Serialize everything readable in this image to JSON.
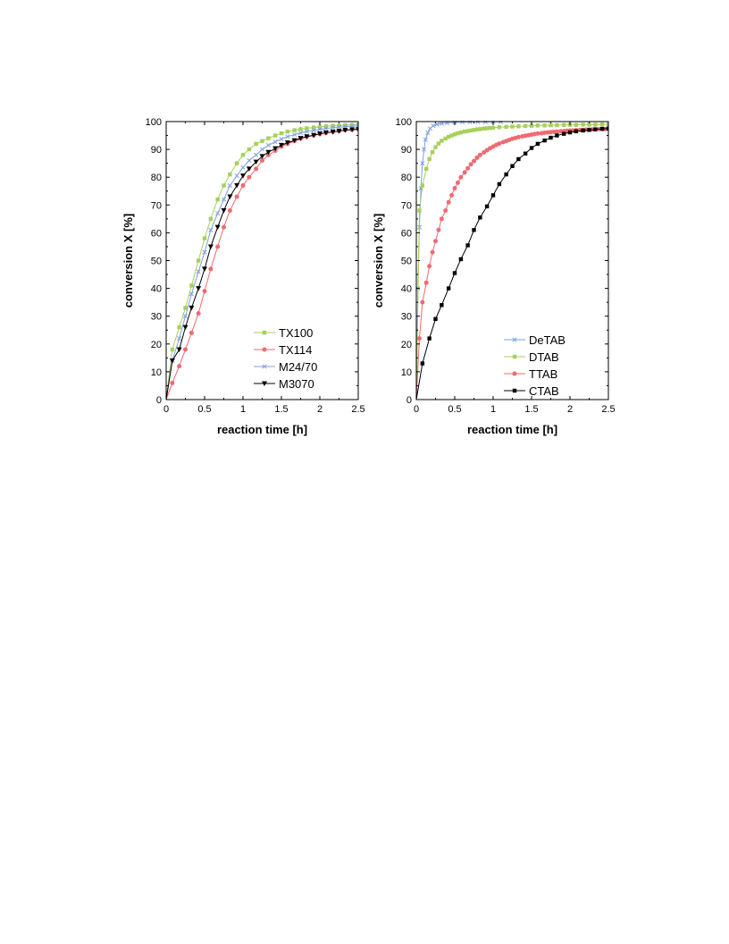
{
  "chart_data": [
    {
      "type": "line",
      "xlabel": "reaction time [h]",
      "ylabel": "conversion X [%]",
      "xlim": [
        0,
        2.5
      ],
      "ylim": [
        0,
        100
      ],
      "xticks": [
        "0",
        "0.5",
        "1",
        "1.5",
        "2",
        "2.5"
      ],
      "yticks": [
        "0",
        "10",
        "20",
        "30",
        "40",
        "50",
        "60",
        "70",
        "80",
        "90",
        "100"
      ],
      "grid": false,
      "legend_position": "bottom-right",
      "series": [
        {
          "name": "TX100",
          "color": "#a6d05a",
          "marker": "square",
          "x": [
            0,
            0.08,
            0.17,
            0.25,
            0.33,
            0.42,
            0.5,
            0.58,
            0.67,
            0.75,
            0.83,
            0.92,
            1.0,
            1.08,
            1.17,
            1.25,
            1.33,
            1.42,
            1.5,
            1.58,
            1.67,
            1.75,
            1.83,
            1.92,
            2.0,
            2.08,
            2.17,
            2.25,
            2.33,
            2.42,
            2.5
          ],
          "y": [
            0,
            18,
            26,
            33,
            41,
            50,
            58,
            65,
            72,
            77,
            81,
            85,
            88,
            90,
            92,
            93,
            94,
            95,
            95.8,
            96.4,
            96.9,
            97.3,
            97.6,
            97.9,
            98.1,
            98.3,
            98.5,
            98.6,
            98.7,
            98.8,
            98.9
          ]
        },
        {
          "name": "TX114",
          "color": "#ee6b72",
          "marker": "circle",
          "x": [
            0,
            0.08,
            0.17,
            0.25,
            0.33,
            0.42,
            0.5,
            0.58,
            0.67,
            0.75,
            0.83,
            0.92,
            1.0,
            1.08,
            1.17,
            1.25,
            1.33,
            1.42,
            1.5,
            1.58,
            1.67,
            1.75,
            1.83,
            1.92,
            2.0,
            2.08,
            2.17,
            2.25,
            2.33,
            2.42,
            2.5
          ],
          "y": [
            0,
            6,
            12,
            18,
            24,
            31,
            39,
            47,
            55,
            62,
            68,
            73,
            77,
            80,
            83,
            86,
            88,
            89.5,
            91,
            92,
            93,
            93.8,
            94.5,
            95,
            95.5,
            95.9,
            96.3,
            96.6,
            96.9,
            97.1,
            97.3
          ]
        },
        {
          "name": "M24/70",
          "color": "#7f9fe0",
          "marker": "cross",
          "x": [
            0,
            0.08,
            0.17,
            0.25,
            0.33,
            0.42,
            0.5,
            0.58,
            0.67,
            0.75,
            0.83,
            0.92,
            1.0,
            1.08,
            1.17,
            1.25,
            1.33,
            1.42,
            1.5,
            1.58,
            1.67,
            1.75,
            1.83,
            1.92,
            2.0,
            2.08,
            2.17,
            2.25,
            2.33,
            2.42,
            2.5
          ],
          "y": [
            0,
            14,
            22,
            30,
            38,
            46,
            53,
            61,
            67,
            72,
            77,
            80.5,
            83.5,
            86,
            88,
            90,
            91.5,
            92.7,
            93.7,
            94.6,
            95.3,
            95.9,
            96.4,
            96.8,
            97.2,
            97.5,
            97.8,
            98,
            98.2,
            98.3,
            98.4
          ]
        },
        {
          "name": "M3070",
          "color": "#000000",
          "marker": "triangle-down",
          "x": [
            0,
            0.08,
            0.17,
            0.25,
            0.33,
            0.42,
            0.5,
            0.58,
            0.67,
            0.75,
            0.83,
            0.92,
            1.0,
            1.08,
            1.17,
            1.25,
            1.33,
            1.42,
            1.5,
            1.58,
            1.67,
            1.75,
            1.83,
            1.92,
            2.0,
            2.08,
            2.17,
            2.25,
            2.33,
            2.42,
            2.5
          ],
          "y": [
            0,
            14,
            18,
            26,
            33,
            40,
            47,
            55,
            62,
            68,
            73,
            77,
            80.5,
            83,
            85.5,
            87.5,
            89,
            90.3,
            91.5,
            92.4,
            93.2,
            94,
            94.6,
            95.1,
            95.6,
            96,
            96.3,
            96.6,
            96.9,
            97.1,
            97.2
          ]
        }
      ]
    },
    {
      "type": "line",
      "xlabel": "reaction time [h]",
      "ylabel": "conversion X [%]",
      "xlim": [
        0,
        2.5
      ],
      "ylim": [
        0,
        100
      ],
      "xticks": [
        "0",
        "0.5",
        "1",
        "1.5",
        "2",
        "2.5"
      ],
      "yticks": [
        "0",
        "10",
        "20",
        "30",
        "40",
        "50",
        "60",
        "70",
        "80",
        "90",
        "100"
      ],
      "grid": false,
      "legend_position": "bottom-right",
      "series": [
        {
          "name": "DeTAB",
          "color": "#7f9fe0",
          "marker": "cross",
          "x": [
            0,
            0.02,
            0.04,
            0.06,
            0.08,
            0.1,
            0.12,
            0.15,
            0.18,
            0.22,
            0.27,
            0.33,
            0.4,
            0.5,
            0.6,
            0.7,
            0.8,
            0.9,
            1.0,
            1.1
          ],
          "y": [
            0,
            40,
            62,
            76,
            85,
            90,
            93.5,
            96,
            97.5,
            98.5,
            99,
            99.3,
            99.5,
            99.7,
            99.8,
            99.8,
            99.9,
            99.9,
            99.9,
            99.9
          ]
        },
        {
          "name": "DTAB",
          "color": "#a6d05a",
          "marker": "square",
          "x": [
            0,
            0.04,
            0.08,
            0.13,
            0.17,
            0.21,
            0.25,
            0.29,
            0.33,
            0.38,
            0.42,
            0.46,
            0.5,
            0.54,
            0.58,
            0.63,
            0.67,
            0.71,
            0.75,
            0.79,
            0.83,
            0.88,
            0.92,
            0.96,
            1.0,
            1.08,
            1.17,
            1.25,
            1.33,
            1.42,
            1.5,
            1.58,
            1.67,
            1.75,
            1.83,
            1.92,
            2.0,
            2.08,
            2.17,
            2.25,
            2.33,
            2.42,
            2.5
          ],
          "y": [
            0,
            68,
            77,
            83,
            86.5,
            89,
            90.8,
            92.1,
            93.1,
            93.9,
            94.5,
            95,
            95.4,
            95.8,
            96.1,
            96.4,
            96.6,
            96.8,
            97,
            97.2,
            97.3,
            97.5,
            97.6,
            97.7,
            97.8,
            98,
            98.1,
            98.2,
            98.3,
            98.4,
            98.5,
            98.6,
            98.6,
            98.7,
            98.7,
            98.8,
            98.8,
            98.8,
            98.9,
            98.9,
            98.9,
            99,
            99
          ]
        },
        {
          "name": "TTAB",
          "color": "#ee6b72",
          "marker": "circle",
          "x": [
            0,
            0.04,
            0.08,
            0.13,
            0.17,
            0.21,
            0.25,
            0.29,
            0.33,
            0.38,
            0.42,
            0.46,
            0.5,
            0.54,
            0.58,
            0.63,
            0.67,
            0.71,
            0.75,
            0.79,
            0.83,
            0.88,
            0.92,
            0.96,
            1.0,
            1.04,
            1.08,
            1.13,
            1.17,
            1.21,
            1.25,
            1.29,
            1.33,
            1.38,
            1.42,
            1.46,
            1.5,
            1.54,
            1.58,
            1.63,
            1.67,
            1.71,
            1.75,
            1.79,
            1.83,
            1.88,
            1.92,
            1.96,
            2.0,
            2.04,
            2.08,
            2.13,
            2.17,
            2.21,
            2.25,
            2.29,
            2.33,
            2.38,
            2.42,
            2.46,
            2.5
          ],
          "y": [
            0,
            22,
            35,
            42,
            48,
            53,
            57,
            61,
            65,
            68,
            71,
            73.5,
            76,
            78,
            80,
            81.7,
            83.2,
            84.6,
            85.8,
            87,
            88,
            88.9,
            89.7,
            90.4,
            91,
            91.6,
            92.1,
            92.6,
            93,
            93.4,
            93.8,
            94.1,
            94.4,
            94.7,
            94.9,
            95.1,
            95.3,
            95.5,
            95.7,
            95.8,
            96,
            96.1,
            96.2,
            96.3,
            96.4,
            96.5,
            96.6,
            96.7,
            96.8,
            96.8,
            96.9,
            97,
            97,
            97.1,
            97.1,
            97.2,
            97.2,
            97.3,
            97.3,
            97.3,
            97.4
          ]
        },
        {
          "name": "CTAB",
          "color": "#000000",
          "marker": "square",
          "x": [
            0,
            0.08,
            0.17,
            0.25,
            0.33,
            0.42,
            0.5,
            0.58,
            0.67,
            0.75,
            0.83,
            0.92,
            1.0,
            1.08,
            1.17,
            1.25,
            1.33,
            1.42,
            1.5,
            1.58,
            1.67,
            1.75,
            1.83,
            1.92,
            2.0,
            2.08,
            2.17,
            2.25,
            2.33,
            2.42,
            2.5
          ],
          "y": [
            0,
            13,
            22,
            29,
            34,
            40,
            45.5,
            50.5,
            55.5,
            61,
            65.5,
            69.5,
            73.5,
            77.5,
            81,
            84,
            86.5,
            88.5,
            90.5,
            92,
            93.2,
            94.2,
            95,
            95.6,
            96.1,
            96.5,
            96.8,
            97,
            97.2,
            97.4,
            97.5
          ]
        }
      ]
    }
  ]
}
